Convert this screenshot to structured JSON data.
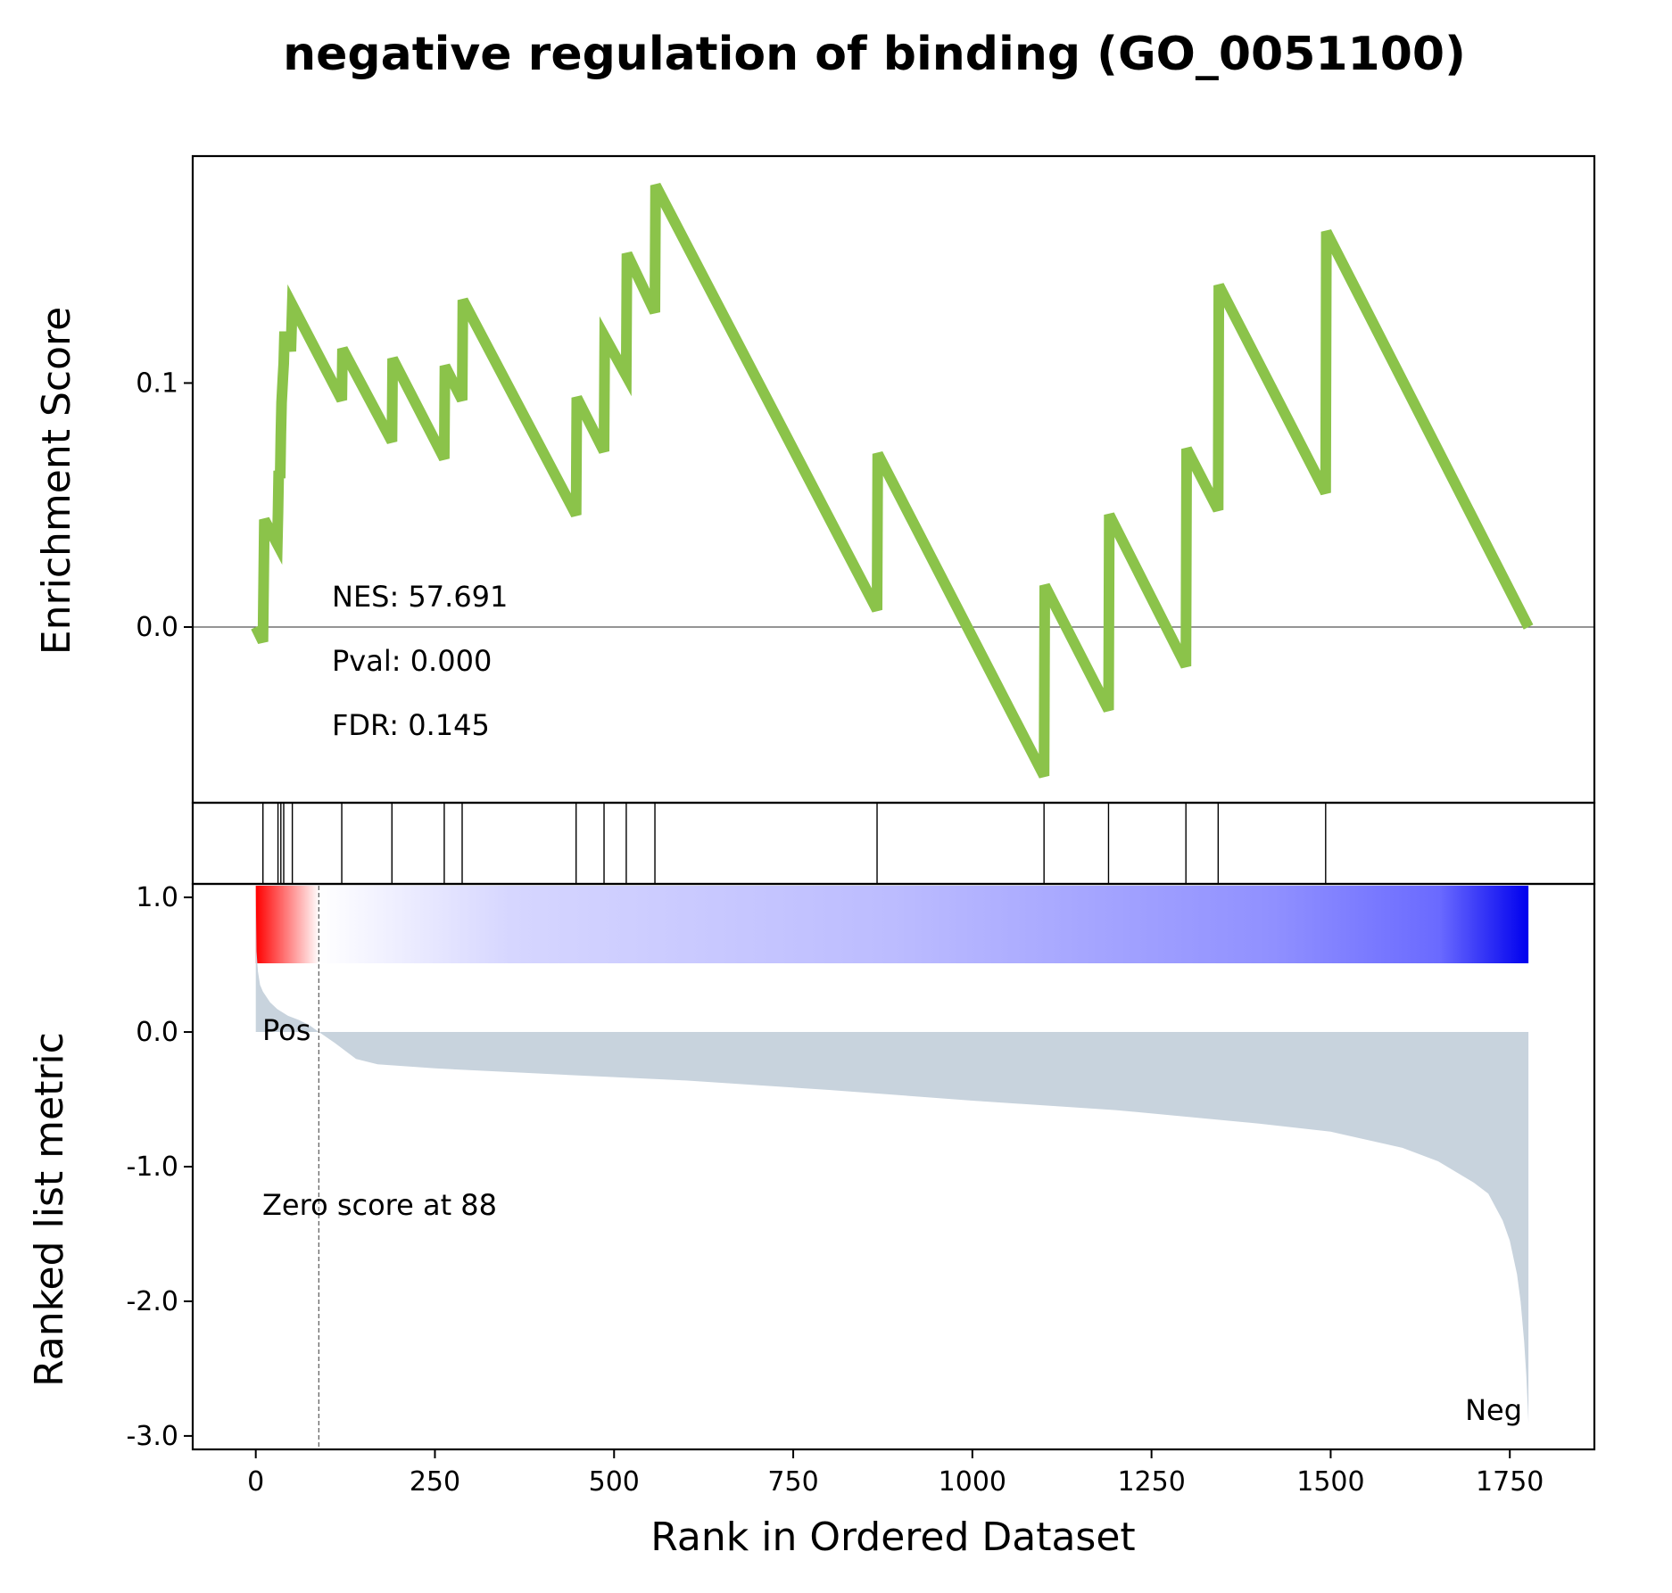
{
  "chart_data": {
    "type": "line",
    "title": "negative regulation of binding (GO_0051100)",
    "xlabel": "Rank in Ordered Dataset",
    "xlim": [
      -88,
      1868
    ],
    "x_ticks": [
      0,
      250,
      500,
      750,
      1000,
      1250,
      1500,
      1750
    ],
    "x_tick_labels": [
      "0",
      "250",
      "500",
      "750",
      "1000",
      "1250",
      "1500",
      "1750"
    ],
    "enrichment": {
      "ylabel": "Enrichment Score",
      "ylim": [
        -0.072,
        0.193
      ],
      "y_ticks": [
        0.0,
        0.1
      ],
      "y_tick_labels": [
        "0.0",
        "0.1"
      ],
      "line_color": "#8bc34a",
      "x": [
        0,
        10,
        12,
        30,
        31,
        32,
        34,
        35,
        36,
        38,
        39,
        40,
        46,
        49,
        51,
        120,
        121,
        190,
        191,
        263,
        264,
        288,
        289,
        447,
        448,
        486,
        487,
        517,
        518,
        557,
        558,
        867,
        868,
        1100,
        1101,
        1190,
        1191,
        1298,
        1299,
        1343,
        1344,
        1493,
        1494,
        1776
      ],
      "y": [
        0.0,
        -0.006,
        0.044,
        0.034,
        0.047,
        0.064,
        0.061,
        0.079,
        0.092,
        0.103,
        0.108,
        0.119,
        0.119,
        0.113,
        0.132,
        0.093,
        0.114,
        0.076,
        0.11,
        0.069,
        0.107,
        0.093,
        0.134,
        0.046,
        0.094,
        0.072,
        0.119,
        0.103,
        0.153,
        0.129,
        0.181,
        0.007,
        0.071,
        -0.061,
        0.017,
        -0.034,
        0.046,
        -0.016,
        0.073,
        0.048,
        0.14,
        0.055,
        0.162,
        0.0
      ],
      "annotations": [
        "NES: 57.691",
        "Pval: 0.000",
        "FDR: 0.145"
      ]
    },
    "hits": [
      10,
      31,
      35,
      39,
      51,
      120,
      190,
      263,
      288,
      447,
      486,
      517,
      557,
      867,
      1100,
      1190,
      1298,
      1343,
      1493
    ],
    "ranked_metric": {
      "ylabel": "Ranked list metric",
      "ylim": [
        -3.1,
        1.1
      ],
      "y_ticks": [
        1.0,
        0.0,
        -1.0,
        -2.0,
        -3.0
      ],
      "y_tick_labels": [
        "1.0",
        "0.0",
        "-1.0",
        "-2.0",
        "-3.0"
      ],
      "fill_color": "#c8d3dd",
      "x": [
        0,
        1,
        3,
        6,
        10,
        20,
        30,
        45,
        60,
        75,
        88,
        110,
        140,
        170,
        250,
        400,
        600,
        800,
        1000,
        1200,
        1400,
        1500,
        1600,
        1650,
        1700,
        1720,
        1740,
        1750,
        1760,
        1765,
        1770,
        1773,
        1776
      ],
      "y": [
        1.05,
        0.6,
        0.45,
        0.35,
        0.3,
        0.22,
        0.17,
        0.12,
        0.09,
        0.05,
        0.0,
        -0.08,
        -0.2,
        -0.24,
        -0.27,
        -0.31,
        -0.36,
        -0.43,
        -0.51,
        -0.58,
        -0.68,
        -0.74,
        -0.86,
        -0.96,
        -1.12,
        -1.2,
        -1.4,
        -1.55,
        -1.8,
        -2.0,
        -2.3,
        -2.55,
        -2.9
      ],
      "zero_score_rank": 88,
      "zero_score_label": "Zero score at 88",
      "pos_label": "Pos",
      "neg_label": "Neg",
      "pos_color": "#ff0000",
      "neg_color": "#0000ff"
    }
  }
}
